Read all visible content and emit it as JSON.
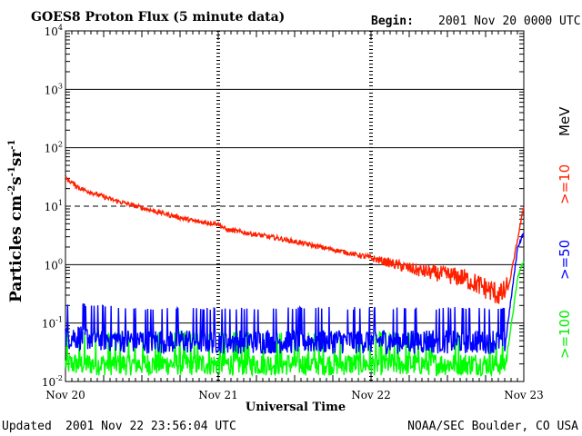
{
  "chart_data": {
    "type": "line",
    "title": "GOES8 Proton Flux (5 minute data)",
    "begin_label": "Begin:",
    "begin_value": "2001 Nov 20 0000 UTC",
    "xlabel": "Universal Time",
    "ylabel_main": "Particles cm",
    "ylabel_exp1": "-2",
    "ylabel_unit2": "s",
    "ylabel_exp2": "-1",
    "ylabel_unit3": "sr",
    "ylabel_exp3": "-1",
    "x_ticks": [
      "Nov 20",
      "Nov 21",
      "Nov 22",
      "Nov 23"
    ],
    "x_range_days": [
      0,
      3
    ],
    "y_scale": "log",
    "y_range": [
      0.01,
      10000
    ],
    "y_ticks": [
      {
        "base": "10",
        "exp": "4"
      },
      {
        "base": "10",
        "exp": "3"
      },
      {
        "base": "10",
        "exp": "2"
      },
      {
        "base": "10",
        "exp": "1"
      },
      {
        "base": "10",
        "exp": "0"
      },
      {
        "base": "10",
        "exp": "-1"
      },
      {
        "base": "10",
        "exp": "-2"
      }
    ],
    "dashed_thresholds": [
      10
    ],
    "unit_label": "MeV",
    "series": [
      {
        "name": ">=10",
        "color": "#ff2000",
        "points": [
          [
            0,
            30
          ],
          [
            0.1,
            20
          ],
          [
            0.3,
            13
          ],
          [
            0.6,
            8
          ],
          [
            0.85,
            5.5
          ],
          [
            1.0,
            5
          ],
          [
            1.05,
            4
          ],
          [
            1.4,
            2.8
          ],
          [
            1.8,
            1.7
          ],
          [
            2.0,
            1.3
          ],
          [
            2.3,
            0.8
          ],
          [
            2.6,
            0.6
          ],
          [
            2.85,
            0.3
          ],
          [
            2.9,
            0.4
          ],
          [
            2.95,
            2
          ],
          [
            3.0,
            10
          ]
        ]
      },
      {
        "name": ">=50",
        "color": "#0000ff",
        "points": [
          [
            0,
            0.06
          ],
          [
            0.5,
            0.05
          ],
          [
            1.0,
            0.05
          ],
          [
            1.5,
            0.05
          ],
          [
            2.0,
            0.05
          ],
          [
            2.5,
            0.05
          ],
          [
            2.88,
            0.05
          ],
          [
            2.92,
            0.3
          ],
          [
            2.96,
            2
          ],
          [
            3.0,
            3.5
          ]
        ]
      },
      {
        "name": ">=100",
        "color": "#00ff00",
        "points": [
          [
            0,
            0.02
          ],
          [
            0.5,
            0.02
          ],
          [
            1.0,
            0.02
          ],
          [
            1.5,
            0.02
          ],
          [
            2.0,
            0.02
          ],
          [
            2.5,
            0.02
          ],
          [
            2.88,
            0.02
          ],
          [
            2.92,
            0.1
          ],
          [
            2.96,
            0.6
          ],
          [
            3.0,
            1.2
          ]
        ]
      }
    ]
  },
  "footer": {
    "updated_label": "Updated",
    "updated_value": "2001 Nov 22 23:56:04 UTC",
    "source": "NOAA/SEC Boulder, CO USA"
  }
}
